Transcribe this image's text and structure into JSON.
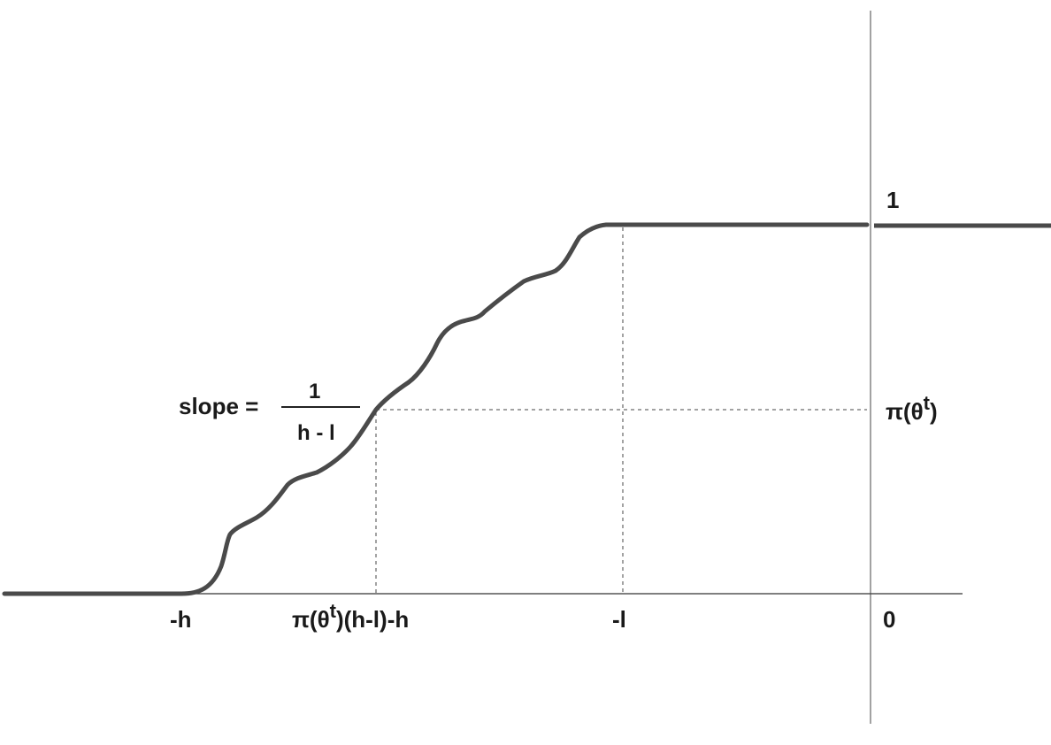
{
  "diagram": {
    "labels": {
      "y_one": "1",
      "y_pi": "π(θ",
      "y_pi_sup": "t",
      "y_pi_close": ")",
      "x_neg_h": "-h",
      "x_mid": "π(θ",
      "x_mid_sup": "t",
      "x_mid_rest": ")(h-l)-h",
      "x_neg_l": "-l",
      "x_zero": "0",
      "slope_prefix": "slope =",
      "slope_numerator": "1",
      "slope_denominator": "h - l"
    }
  }
}
